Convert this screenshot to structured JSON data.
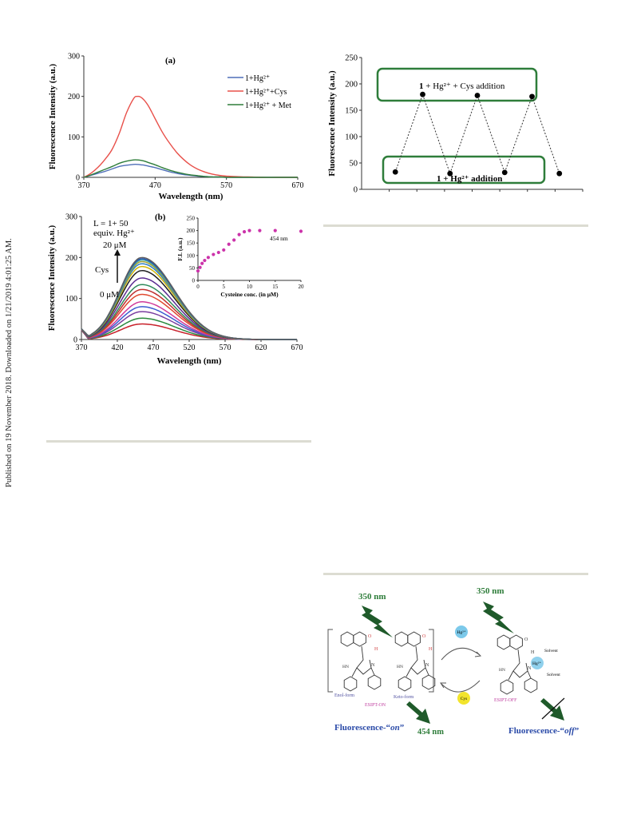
{
  "sidebar_note": "Published on 19 November 2018. Downloaded on 1/21/2019 4:01:25 AM.",
  "chart_data": [
    {
      "id": "a",
      "type": "line",
      "panel_label": "(a)",
      "xlabel": "Wavelength (nm)",
      "ylabel": "Fluorescence Intensity (a.u.)",
      "xlim": [
        370,
        670
      ],
      "ylim": [
        0,
        300
      ],
      "xticks": [
        370,
        470,
        570,
        670
      ],
      "yticks": [
        0,
        100,
        200,
        300
      ],
      "x": [
        370,
        380,
        390,
        400,
        410,
        420,
        430,
        440,
        445,
        450,
        455,
        460,
        465,
        470,
        480,
        490,
        500,
        510,
        520,
        530,
        540,
        550,
        560,
        570,
        580,
        600,
        620,
        640,
        670
      ],
      "series": [
        {
          "name": "1+Hg²⁺",
          "color": "#4f6fb8",
          "values": [
            0,
            5,
            10,
            15,
            21,
            27,
            30,
            32,
            32,
            31,
            30,
            28,
            26,
            24,
            19,
            14,
            10,
            7,
            5,
            3,
            2,
            1,
            1,
            0,
            0,
            0,
            0,
            0,
            0
          ]
        },
        {
          "name": "1+Hg²⁺+Cys",
          "color": "#e8504a",
          "values": [
            0,
            10,
            25,
            45,
            70,
            110,
            160,
            195,
            200,
            198,
            190,
            178,
            162,
            145,
            112,
            85,
            62,
            44,
            30,
            20,
            13,
            8,
            5,
            3,
            2,
            1,
            0,
            0,
            0
          ]
        },
        {
          "name": "1+Hg²⁺ + Met",
          "color": "#2e7d3a",
          "values": [
            0,
            6,
            13,
            20,
            27,
            35,
            40,
            43,
            43,
            42,
            40,
            37,
            34,
            31,
            24,
            18,
            13,
            9,
            6,
            4,
            2,
            1,
            1,
            0,
            0,
            0,
            0,
            0,
            0
          ]
        }
      ]
    },
    {
      "id": "b",
      "type": "line",
      "panel_label": "(b)",
      "xlabel": "Wavelength (nm)",
      "ylabel": "Fluorescence Intensity (a.u.)",
      "xlim": [
        370,
        670
      ],
      "ylim": [
        0,
        300
      ],
      "xticks": [
        370,
        420,
        470,
        520,
        570,
        620,
        670
      ],
      "yticks": [
        0,
        100,
        200,
        300
      ],
      "annotation_L": "L = 1+ 50",
      "annotation_equiv": "equiv. Hg²⁺",
      "annotation_top": "20 μM",
      "annotation_cys": "Cys",
      "annotation_bottom": "0 μM",
      "peak_nm": 454,
      "peak_values": [
        38,
        52,
        68,
        80,
        92,
        110,
        122,
        134,
        150,
        168,
        178,
        185,
        190,
        194,
        197,
        200
      ],
      "colors": [
        "#c8202a",
        "#2b8a3e",
        "#7a3fa0",
        "#3b5bd0",
        "#d03a9a",
        "#e04a30",
        "#c0302e",
        "#2e8a5a",
        "#5a2a90",
        "#202020",
        "#d2b400",
        "#3080c8",
        "#a0a030",
        "#40a0a0",
        "#2050b0",
        "#606060"
      ]
    },
    {
      "id": "b-inset",
      "type": "scatter",
      "annotation": "454 nm",
      "xlabel": "Cysteine conc. (in μM)",
      "ylabel": "F.I. (a.u.)",
      "xlim": [
        0,
        20
      ],
      "ylim": [
        0,
        250
      ],
      "xticks": [
        0,
        5,
        10,
        15,
        20
      ],
      "yticks": [
        0,
        50,
        100,
        150,
        200,
        250
      ],
      "color": "#cc33aa",
      "x": [
        0,
        0.4,
        0.8,
        1.3,
        2,
        3,
        4,
        5,
        6,
        7,
        8,
        9,
        10,
        12,
        15,
        20
      ],
      "y": [
        38,
        52,
        68,
        80,
        92,
        104,
        112,
        122,
        145,
        162,
        184,
        195,
        200,
        200,
        200,
        197
      ]
    },
    {
      "id": "c",
      "type": "scatter",
      "ylabel": "Fluorescence Intensity (a.u.)",
      "ylim": [
        0,
        250
      ],
      "yticks": [
        0,
        50,
        100,
        150,
        200,
        250
      ],
      "xlim": [
        0,
        8
      ],
      "x": [
        1,
        2,
        3,
        4,
        5,
        6
      ],
      "y": [
        33,
        180,
        30,
        178,
        32,
        176
      ],
      "extra_tail": [
        {
          "x": 7,
          "y": 30
        }
      ],
      "box_top_label_prefix": "1",
      "box_top_label_suffix": " + Hg²⁺ + Cys addition",
      "box_bottom_label": "1 + Hg²⁺ addition"
    }
  ],
  "scheme": {
    "excitation_label": "350 nm",
    "excitation_label_right": "350 nm",
    "hg_label": "Hg²⁺",
    "cys_label": "Cys",
    "enol_label": "Enol-form",
    "keto_label": "Keto-form",
    "esipt_on": "ESIPT-ON",
    "esipt_off": "ESIPT-OFF",
    "solvent_top": "Solvent",
    "solvent_bottom": "Solvent",
    "fl_on_prefix": "Fluorescence-“",
    "fl_on_word": "on",
    "fl_on_suffix": "”",
    "emission_label": "454 nm",
    "fl_off_prefix": "Fluorescence-“",
    "fl_off_word": "off",
    "fl_off_suffix": "”",
    "atom_O": "O",
    "atom_H": "H",
    "atom_N": "N",
    "atom_HN": "HN"
  }
}
